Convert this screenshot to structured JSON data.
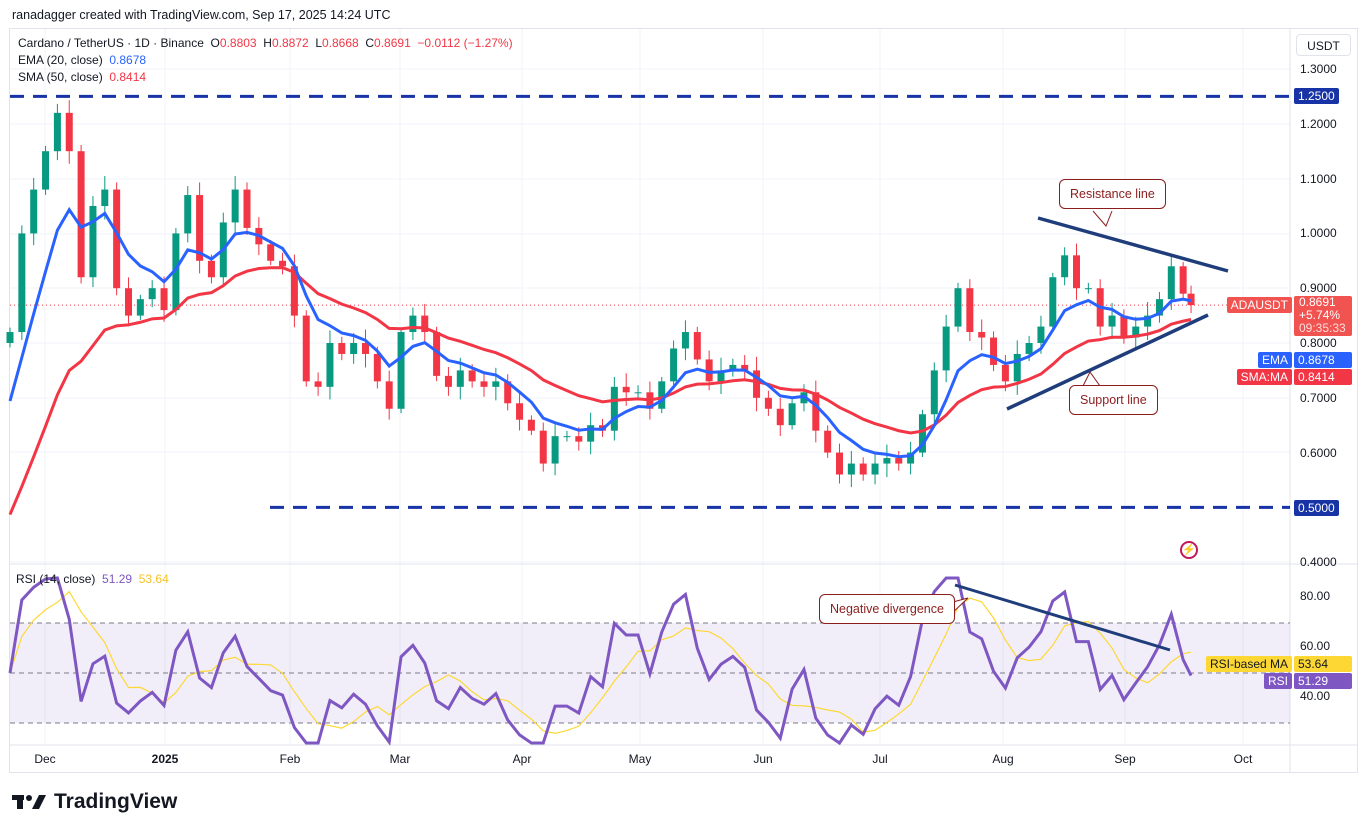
{
  "credit": "ranadagger created with TradingView.com, Sep 17, 2025 14:24 UTC",
  "header": {
    "symbol": "Cardano / TetherUS · 1D · Binance",
    "o_label": "O",
    "o": "0.8803",
    "h_label": "H",
    "h": "0.8872",
    "l_label": "L",
    "l": "0.8668",
    "c_label": "C",
    "c": "0.8691",
    "change": "−0.0112 (−1.27%)",
    "ema_label": "EMA (20, close)",
    "ema_value": "0.8678",
    "sma_label": "SMA (50, close)",
    "sma_value": "0.8414",
    "currency": "USDT"
  },
  "rsi_legend": {
    "label": "RSI (14, close)",
    "rsi": "51.29",
    "ma": "53.64"
  },
  "price_axis": [
    "1.3000",
    "1.2000",
    "1.1000",
    "1.0000",
    "0.9000",
    "0.8000",
    "0.7000",
    "0.6000",
    "0.4000"
  ],
  "rsi_axis": [
    "80.00",
    "60.00",
    "40.00"
  ],
  "time_axis": [
    "Dec",
    "2025",
    "Feb",
    "Mar",
    "Apr",
    "May",
    "Jun",
    "Jul",
    "Aug",
    "Sep",
    "Oct"
  ],
  "tags": {
    "level_high": "1.2500",
    "level_low": "0.5000",
    "symbol": "ADAUSDT",
    "price": "0.8691",
    "pct": "+5.74%",
    "countdown": "09:35:33",
    "ema_name": "EMA",
    "ema": "0.8678",
    "sma_name": "SMA:MA",
    "sma": "0.8414",
    "rsi_ma_name": "RSI-based MA",
    "rsi_ma": "53.64",
    "rsi_name": "RSI",
    "rsi": "51.29"
  },
  "annotations": {
    "resistance": "Resistance line",
    "support": "Support line",
    "divergence": "Negative divergence"
  },
  "brand": "TradingView",
  "colors": {
    "up": "#089981",
    "down": "#f23645",
    "ema": "#2962ff",
    "sma": "#f23645",
    "rsi": "#7e57c2",
    "rsi_ma": "#fdd835",
    "trendline": "#1f3d7a",
    "level": "#1733a6"
  },
  "chart_data": {
    "type": "candlestick",
    "title": "Cardano / TetherUS · 1D · Binance",
    "ylim": [
      0.4,
      1.3
    ],
    "horizontal_levels": [
      1.25,
      0.5
    ],
    "rsi_levels": [
      70,
      50,
      30
    ],
    "dates": [
      "2024-11-22",
      "2024-11-25",
      "2024-11-28",
      "2024-12-01",
      "2024-12-04",
      "2024-12-07",
      "2024-12-10",
      "2024-12-13",
      "2024-12-16",
      "2024-12-19",
      "2024-12-22",
      "2024-12-25",
      "2024-12-28",
      "2024-12-31",
      "2025-01-03",
      "2025-01-06",
      "2025-01-09",
      "2025-01-12",
      "2025-01-15",
      "2025-01-18",
      "2025-01-21",
      "2025-01-24",
      "2025-01-27",
      "2025-01-30",
      "2025-02-02",
      "2025-02-05",
      "2025-02-08",
      "2025-02-11",
      "2025-02-14",
      "2025-02-17",
      "2025-02-20",
      "2025-02-23",
      "2025-02-26",
      "2025-03-01",
      "2025-03-04",
      "2025-03-07",
      "2025-03-10",
      "2025-03-13",
      "2025-03-16",
      "2025-03-19",
      "2025-03-22",
      "2025-03-25",
      "2025-03-28",
      "2025-03-31",
      "2025-04-03",
      "2025-04-06",
      "2025-04-09",
      "2025-04-12",
      "2025-04-15",
      "2025-04-18",
      "2025-04-21",
      "2025-04-24",
      "2025-04-27",
      "2025-04-30",
      "2025-05-03",
      "2025-05-06",
      "2025-05-09",
      "2025-05-12",
      "2025-05-15",
      "2025-05-18",
      "2025-05-21",
      "2025-05-24",
      "2025-05-27",
      "2025-05-30",
      "2025-06-02",
      "2025-06-05",
      "2025-06-08",
      "2025-06-11",
      "2025-06-14",
      "2025-06-17",
      "2025-06-20",
      "2025-06-23",
      "2025-06-26",
      "2025-06-29",
      "2025-07-02",
      "2025-07-05",
      "2025-07-08",
      "2025-07-11",
      "2025-07-14",
      "2025-07-17",
      "2025-07-20",
      "2025-07-23",
      "2025-07-26",
      "2025-07-29",
      "2025-08-01",
      "2025-08-04",
      "2025-08-07",
      "2025-08-10",
      "2025-08-13",
      "2025-08-16",
      "2025-08-19",
      "2025-08-22",
      "2025-08-25",
      "2025-08-28",
      "2025-08-31",
      "2025-09-03",
      "2025-09-06",
      "2025-09-09",
      "2025-09-12",
      "2025-09-15",
      "2025-09-17"
    ],
    "close": [
      0.82,
      1.0,
      1.08,
      1.15,
      1.22,
      1.15,
      0.92,
      1.05,
      1.08,
      0.9,
      0.85,
      0.88,
      0.9,
      0.86,
      1.0,
      1.07,
      0.95,
      0.92,
      1.02,
      1.08,
      1.01,
      0.98,
      0.95,
      0.94,
      0.85,
      0.73,
      0.72,
      0.8,
      0.78,
      0.8,
      0.78,
      0.73,
      0.68,
      0.82,
      0.85,
      0.82,
      0.74,
      0.72,
      0.75,
      0.73,
      0.72,
      0.73,
      0.69,
      0.66,
      0.64,
      0.58,
      0.63,
      0.63,
      0.62,
      0.65,
      0.64,
      0.72,
      0.71,
      0.71,
      0.68,
      0.73,
      0.79,
      0.82,
      0.77,
      0.73,
      0.75,
      0.76,
      0.75,
      0.7,
      0.68,
      0.65,
      0.69,
      0.71,
      0.64,
      0.6,
      0.56,
      0.58,
      0.56,
      0.58,
      0.59,
      0.58,
      0.6,
      0.67,
      0.75,
      0.83,
      0.9,
      0.82,
      0.81,
      0.76,
      0.73,
      0.78,
      0.8,
      0.83,
      0.92,
      0.96,
      0.9,
      0.9,
      0.83,
      0.85,
      0.81,
      0.83,
      0.85,
      0.88,
      0.94,
      0.89,
      0.8691
    ]
  }
}
